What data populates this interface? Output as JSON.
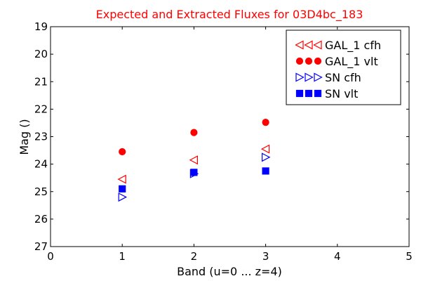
{
  "chart_data": {
    "type": "scatter",
    "title": "Expected and Extracted Fluxes for 03D4bc_183",
    "xlabel": "Band (u=0 ... z=4)",
    "ylabel": "Mag ()",
    "xlim": [
      0,
      5
    ],
    "ylim": [
      27,
      19
    ],
    "y_inverted": true,
    "grid": false,
    "legend_position": "top-right",
    "x_ticks": [
      "0",
      "1",
      "2",
      "3",
      "4",
      "5"
    ],
    "y_ticks": [
      "19",
      "20",
      "21",
      "22",
      "23",
      "24",
      "25",
      "26",
      "27"
    ],
    "colors": {
      "title": "#ff0000",
      "red": "#ff0000",
      "blue": "#0000ff",
      "axis": "#000000"
    },
    "series": [
      {
        "name": "GAL_1 cfh",
        "marker": "triangle-left",
        "filled": false,
        "color": "#ff0000",
        "x": [
          1,
          2,
          3
        ],
        "y": [
          24.55,
          23.85,
          23.45
        ]
      },
      {
        "name": "GAL_1 vlt",
        "marker": "circle",
        "filled": true,
        "color": "#ff0000",
        "x": [
          1,
          2,
          3
        ],
        "y": [
          23.55,
          22.85,
          22.48
        ]
      },
      {
        "name": "SN cfh",
        "marker": "triangle-right",
        "filled": false,
        "color": "#0000ff",
        "x": [
          1,
          2,
          3
        ],
        "y": [
          25.2,
          24.35,
          23.75
        ]
      },
      {
        "name": "SN vlt",
        "marker": "square",
        "filled": true,
        "color": "#0000ff",
        "x": [
          1,
          2,
          3
        ],
        "y": [
          24.9,
          24.3,
          24.25
        ]
      }
    ]
  }
}
